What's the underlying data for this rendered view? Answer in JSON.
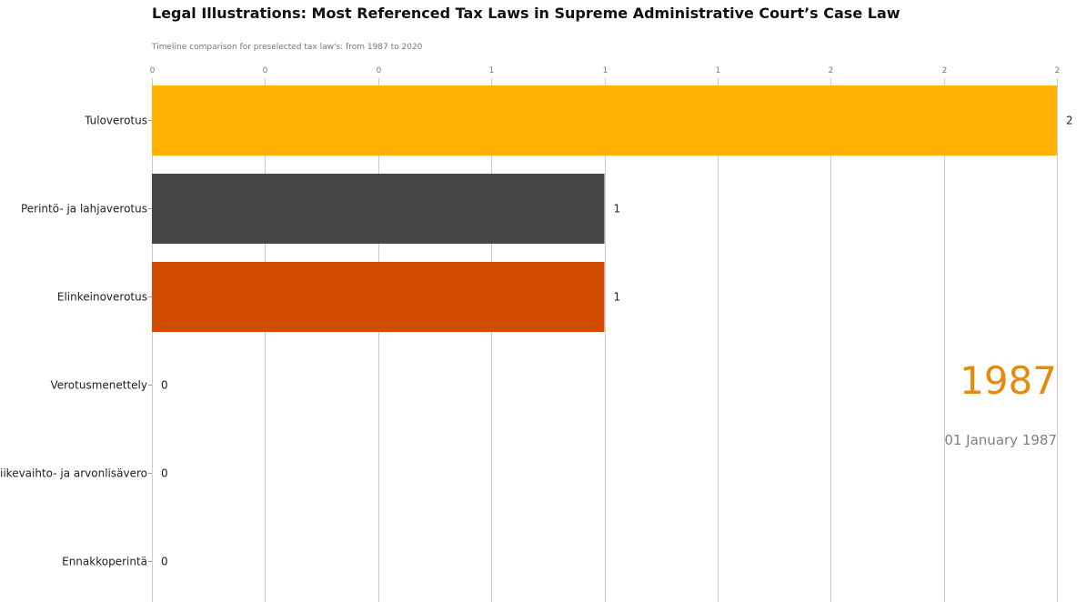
{
  "chart_data": {
    "type": "bar",
    "orientation": "horizontal",
    "title": "Legal Illustrations: Most Referenced Tax Laws in Supreme Administrative Court’s Case Law",
    "subtitle": "Timeline comparison for preselected tax law's: from 1987 to 2020",
    "categories": [
      "Tuloverotus",
      "Perintö- ja lahjaverotus",
      "Elinkeinoverotus",
      "Verotusmenettely",
      "Liikevaihto- ja arvonlisävero",
      "Ennakkoperintä"
    ],
    "values": [
      2,
      1,
      1,
      0,
      0,
      0
    ],
    "value_labels": [
      "2",
      "1",
      "1",
      "0",
      "0",
      "0"
    ],
    "colors": [
      "#ffb300",
      "#454545",
      "#d14b00",
      "#ffb300",
      "#ffb300",
      "#ffb300"
    ],
    "xlim": [
      0,
      2
    ],
    "x_ticks": [
      0,
      0.25,
      0.5,
      0.75,
      1,
      1.25,
      1.5,
      1.75,
      2
    ],
    "x_tick_labels": [
      "0",
      "0",
      "0",
      "1",
      "1",
      "1",
      "2",
      "2",
      "2"
    ],
    "x_axis_position": "top",
    "grid": true,
    "legend": "none",
    "year": "1987",
    "date": "01 January 1987",
    "year_color": "#e8890c",
    "date_color": "#808080"
  }
}
